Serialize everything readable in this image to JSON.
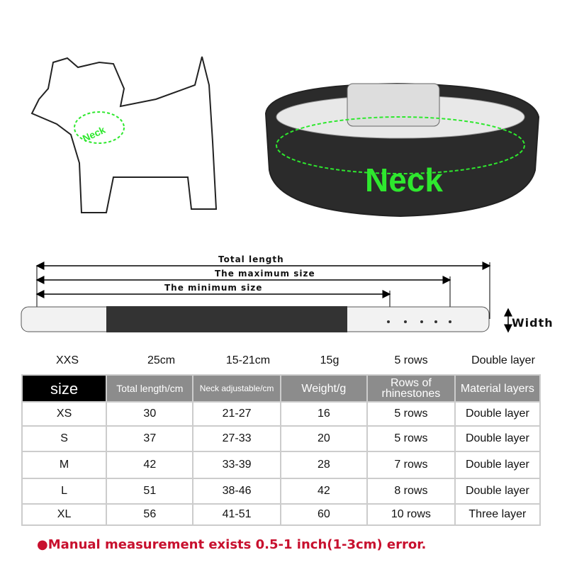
{
  "illustration": {
    "dog_label": "Neck",
    "collar_label": "Neck",
    "accent_color": "#2ee82e"
  },
  "diagram": {
    "total_length": "Total length",
    "maximum_size": "The maximum size",
    "minimum_size": "The minimum size",
    "width": "Width"
  },
  "xxs_row": [
    "XXS",
    "25cm",
    "15-21cm",
    "15g",
    "5 rows",
    "Double layer"
  ],
  "table": {
    "headers": [
      "size",
      "Total length/cm",
      "Neck adjustable/cm",
      "Weight/g",
      "Rows of rhinestones",
      "Material layers"
    ],
    "rows": [
      [
        "XS",
        "30",
        "21-27",
        "16",
        "5 rows",
        "Double layer"
      ],
      [
        "S",
        "37",
        "27-33",
        "20",
        "5 rows",
        "Double layer"
      ],
      [
        "M",
        "42",
        "33-39",
        "28",
        "7 rows",
        "Double layer"
      ],
      [
        "L",
        "51",
        "38-46",
        "42",
        "8 rows",
        "Double layer"
      ],
      [
        "XL",
        "56",
        "41-51",
        "60",
        "10 rows",
        "Three layer"
      ]
    ]
  },
  "footnote": "●Manual measurement exists 0.5-1 inch(1-3cm) error."
}
